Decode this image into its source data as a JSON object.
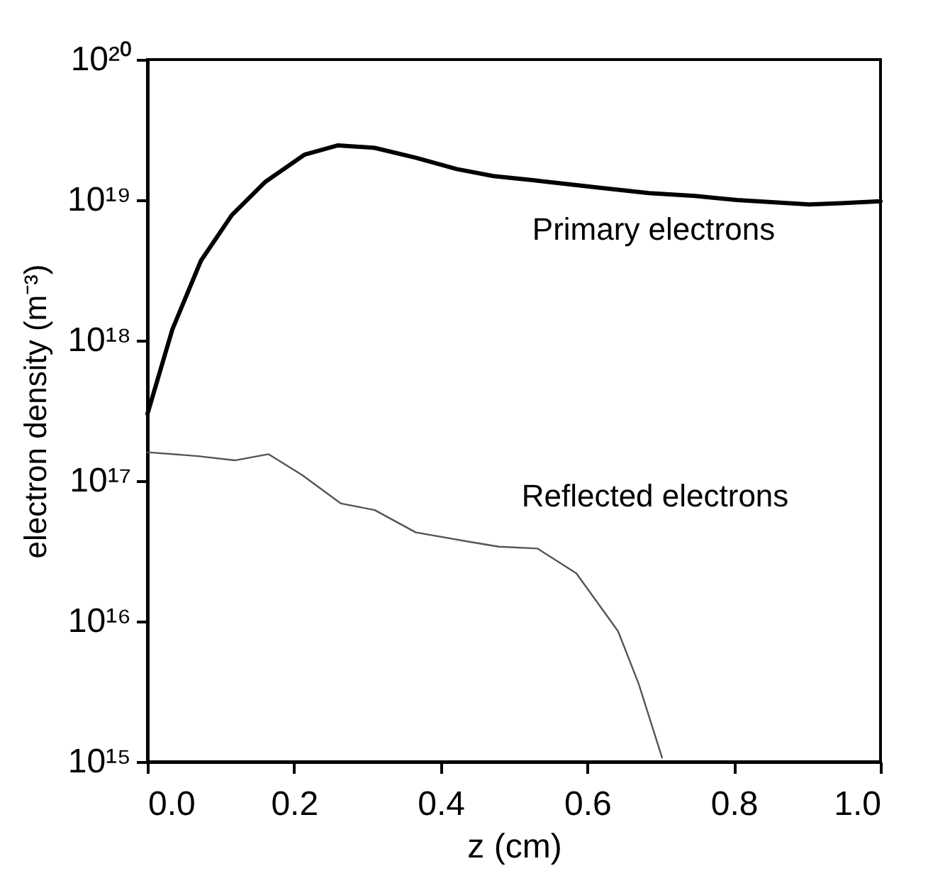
{
  "chart_data": {
    "type": "line",
    "xlabel": "z (cm)",
    "ylabel": "electron density (m⁻³)",
    "log": "y",
    "grid": false,
    "legend": false,
    "marker": "none",
    "line_style": "solid",
    "xlim": [
      0,
      1
    ],
    "xticks": [
      {
        "value": 0,
        "label": "0.0"
      },
      {
        "value": 0.2,
        "label": "0.2"
      },
      {
        "value": 0.4,
        "label": "0.4"
      },
      {
        "value": 0.6,
        "label": "0.6"
      },
      {
        "value": 0.8,
        "label": "0.8"
      },
      {
        "value": 1,
        "label": "1.0"
      }
    ],
    "ylim": [
      1000000000000000.0,
      1e+20
    ],
    "yticks": [
      {
        "value": 1000000000000000.0,
        "label": "10¹⁵"
      },
      {
        "value": 1e+16,
        "label": "10¹⁶"
      },
      {
        "value": 1e+17,
        "label": "10¹⁷"
      },
      {
        "value": 1e+18,
        "label": "10¹⁸"
      },
      {
        "value": 1e+19,
        "label": "10¹⁹"
      },
      {
        "value": 1e+20,
        "label": "10²⁰"
      }
    ],
    "series": [
      {
        "name": "Primary electrons",
        "color": "#000000",
        "x": [
          0,
          0.034,
          0.073,
          0.115,
          0.161,
          0.214,
          0.26,
          0.31,
          0.366,
          0.422,
          0.472,
          0.528,
          0.613,
          0.684,
          0.747,
          0.804,
          0.903,
          0.946,
          1.0
        ],
        "values": [
          3e+17,
          1.2e+18,
          3.7e+18,
          7.8e+18,
          1.35e+19,
          2.1e+19,
          2.45e+19,
          2.35e+19,
          2e+19,
          1.66e+19,
          1.48e+19,
          1.38e+19,
          1.23e+19,
          1.12e+19,
          1.07e+19,
          1e+19,
          9.3e+18,
          9.5e+18,
          9.8e+18
        ]
      },
      {
        "name": "Reflected electrons",
        "color": "#555555",
        "x": [
          0,
          0.069,
          0.119,
          0.165,
          0.211,
          0.264,
          0.31,
          0.366,
          0.437,
          0.479,
          0.532,
          0.585,
          0.642,
          0.67,
          0.702
        ],
        "values": [
          1.6e+17,
          1.5e+17,
          1.4e+17,
          1.55e+17,
          1.1e+17,
          6.9e+16,
          6.2e+16,
          4.3e+16,
          3.7e+16,
          3.4e+16,
          3.3e+16,
          2.2e+16,
          8500000000000000.0,
          3600000000000000.0,
          1070000000000000.0
        ]
      }
    ]
  }
}
